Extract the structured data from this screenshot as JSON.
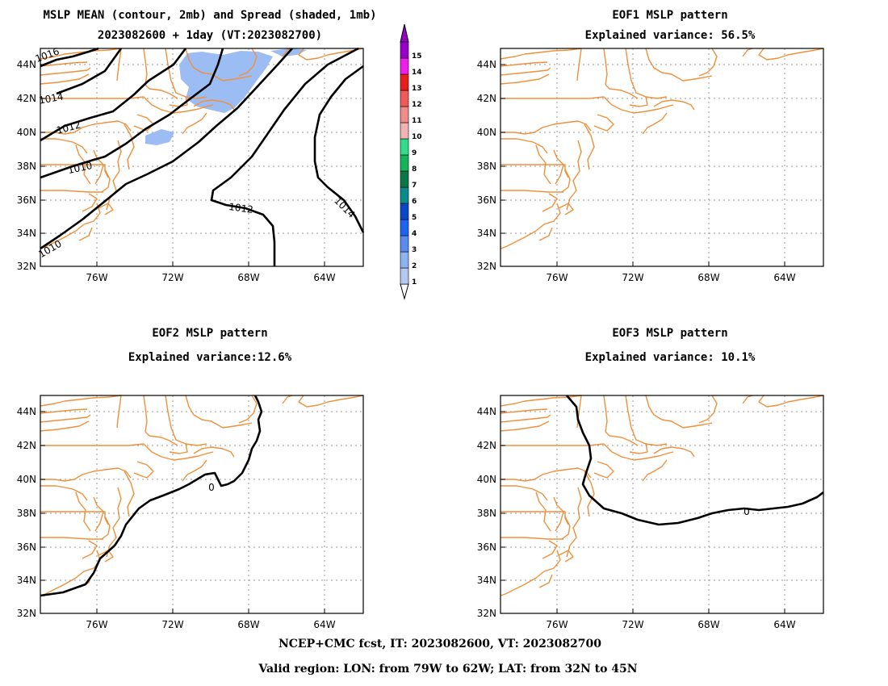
{
  "chart_data": [
    {
      "type": "contour-map",
      "title": "MSLP MEAN (contour, 2mb) and Spread (shaded, 1mb)",
      "subtitle": "2023082600 + 1day (VT:2023082700)",
      "lon_range": [
        -79,
        -62
      ],
      "lat_range": [
        32,
        45
      ],
      "x_ticks": [
        "76W",
        "72W",
        "68W",
        "64W"
      ],
      "y_ticks": [
        "44N",
        "42N",
        "40N",
        "38N",
        "36N",
        "34N",
        "32N"
      ],
      "contour_labels": [
        "1016",
        "1014",
        "1012",
        "1010",
        "1012",
        "1010",
        "1014"
      ],
      "colorbar": {
        "levels": [
          "1",
          "2",
          "3",
          "4",
          "5",
          "6",
          "7",
          "8",
          "9",
          "10",
          "11",
          "12",
          "13",
          "14",
          "15"
        ],
        "colors": [
          "#b4c8f0",
          "#8cb4f0",
          "#5a8cf0",
          "#1e64f0",
          "#0a46c8",
          "#0a8c8c",
          "#0a7846",
          "#14b45a",
          "#32dc8c",
          "#f0b4b4",
          "#f08c8c",
          "#f05a5a",
          "#e61e1e",
          "#f01eeb",
          "#9600c8"
        ]
      }
    },
    {
      "type": "contour-map",
      "title": "EOF1 MSLP pattern",
      "subtitle": "Explained variance: 56.5%",
      "explained_variance_pct": 56.5,
      "x_ticks": [
        "76W",
        "72W",
        "68W",
        "64W"
      ],
      "y_ticks": [
        "44N",
        "42N",
        "40N",
        "38N",
        "36N",
        "34N",
        "32N"
      ],
      "contour_labels": []
    },
    {
      "type": "contour-map",
      "title": "EOF2 MSLP pattern",
      "subtitle": "Explained variance:12.6%",
      "explained_variance_pct": 12.6,
      "x_ticks": [
        "76W",
        "72W",
        "68W",
        "64W"
      ],
      "y_ticks": [
        "44N",
        "42N",
        "40N",
        "38N",
        "36N",
        "34N",
        "32N"
      ],
      "contour_labels": [
        "0"
      ]
    },
    {
      "type": "contour-map",
      "title": "EOF3 MSLP pattern",
      "subtitle": "Explained variance: 10.1%",
      "explained_variance_pct": 10.1,
      "x_ticks": [
        "76W",
        "72W",
        "68W",
        "64W"
      ],
      "y_ticks": [
        "44N",
        "42N",
        "40N",
        "38N",
        "36N",
        "34N",
        "32N"
      ],
      "contour_labels": [
        "0"
      ]
    }
  ],
  "footer": {
    "line1": "NCEP+CMC fcst, IT: 2023082600, VT: 2023082700",
    "line2": "Valid region: LON: from 79W to 62W; LAT: from 32N to 45N"
  },
  "colors": {
    "coastline": "#f0903a",
    "contour": "#000000",
    "spread_fill": "#9cbcf4",
    "grid": "#999999"
  }
}
